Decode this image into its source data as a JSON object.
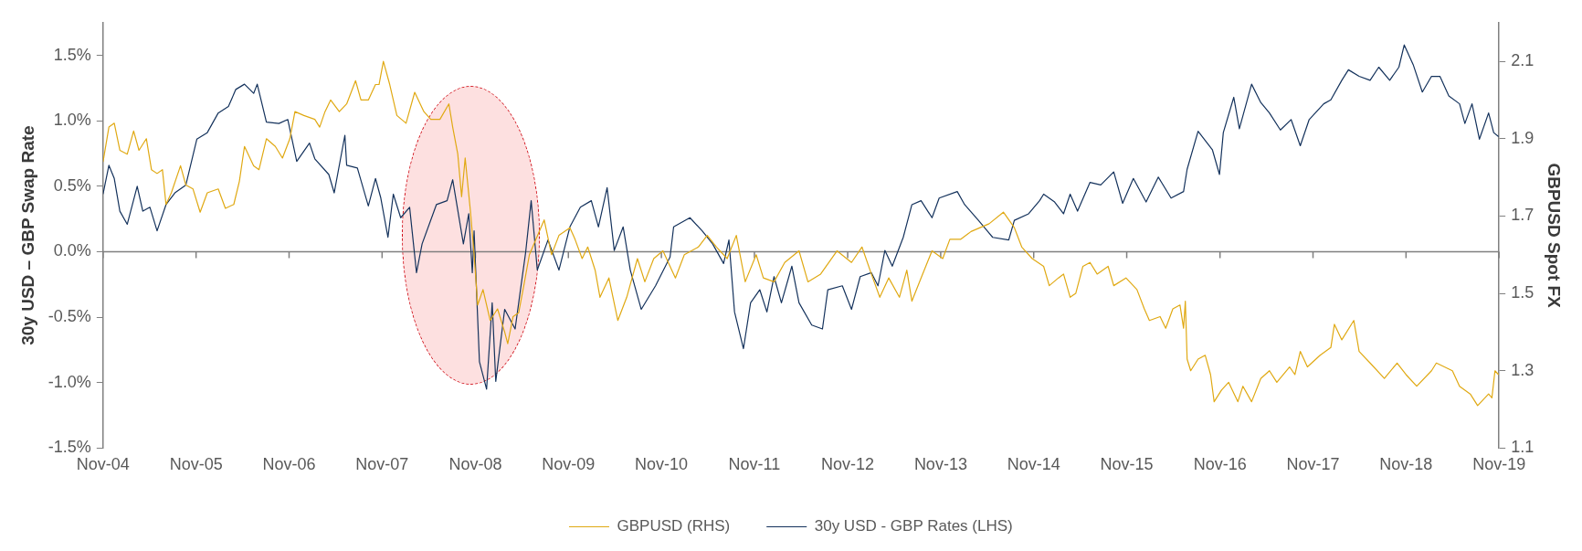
{
  "chart_data": {
    "type": "line",
    "ylabel": "30y USD – GBP Swap Rate",
    "y2label": "GBPUSD Spot FX",
    "xlim": [
      "2004-11-01",
      "2019-11-01"
    ],
    "xticks": [
      {
        "value": "2004-11-01",
        "label": "Nov-04"
      },
      {
        "value": "2005-11-01",
        "label": "Nov-05"
      },
      {
        "value": "2006-11-01",
        "label": "Nov-06"
      },
      {
        "value": "2007-11-01",
        "label": "Nov-07"
      },
      {
        "value": "2008-11-01",
        "label": "Nov-08"
      },
      {
        "value": "2009-11-01",
        "label": "Nov-09"
      },
      {
        "value": "2010-11-01",
        "label": "Nov-10"
      },
      {
        "value": "2011-11-01",
        "label": "Nov-11"
      },
      {
        "value": "2012-11-01",
        "label": "Nov-12"
      },
      {
        "value": "2013-11-01",
        "label": "Nov-13"
      },
      {
        "value": "2014-11-01",
        "label": "Nov-14"
      },
      {
        "value": "2015-11-01",
        "label": "Nov-15"
      },
      {
        "value": "2016-11-01",
        "label": "Nov-16"
      },
      {
        "value": "2017-11-01",
        "label": "Nov-17"
      },
      {
        "value": "2018-11-01",
        "label": "Nov-18"
      },
      {
        "value": "2019-11-01",
        "label": "Nov-19"
      }
    ],
    "ylim": [
      -1.5,
      1.75
    ],
    "yticks": [
      {
        "value": -1.5,
        "label": "-1.5%"
      },
      {
        "value": -1,
        "label": "-1.0%"
      },
      {
        "value": -0.5,
        "label": "-0.5%"
      },
      {
        "value": 0,
        "label": "0.0%"
      },
      {
        "value": 0.5,
        "label": "0.5%"
      },
      {
        "value": 1,
        "label": "1.0%"
      },
      {
        "value": 1.5,
        "label": "1.5%"
      }
    ],
    "y2lim": [
      1.1,
      2.2
    ],
    "y2ticks": [
      1.1,
      1.3,
      1.5,
      1.7,
      1.9,
      2.1
    ],
    "grid": false,
    "legend": "bottom",
    "ref_lines": [
      {
        "axis": "y",
        "value": 0,
        "color": "#808080"
      }
    ],
    "series": [
      {
        "name": "30y USD - GBP Rates (LHS)",
        "color": "#14325c",
        "x": [
          "2004-11-01",
          "2004-11-24",
          "2004-12-15",
          "2005-01-06",
          "2005-02-04",
          "2005-03-15",
          "2005-04-06",
          "2005-05-04",
          "2005-06-01",
          "2005-07-06",
          "2005-08-10",
          "2005-09-22",
          "2005-11-04",
          "2005-12-15",
          "2006-01-27",
          "2006-03-08",
          "2006-04-06",
          "2006-05-10",
          "2006-06-15",
          "2006-06-29",
          "2006-08-04",
          "2006-09-22",
          "2006-10-27",
          "2006-12-01",
          "2007-01-20",
          "2007-02-10",
          "2007-04-06",
          "2007-04-27",
          "2007-06-08",
          "2007-06-15",
          "2007-07-27",
          "2007-09-08",
          "2007-10-06",
          "2007-10-27",
          "2007-11-24",
          "2007-12-15",
          "2008-01-13",
          "2008-02-17",
          "2008-03-15",
          "2008-04-06",
          "2008-06-01",
          "2008-07-13",
          "2008-08-04",
          "2008-09-15",
          "2008-10-06",
          "2008-10-20",
          "2008-10-27",
          "2008-11-17",
          "2008-12-15",
          "2009-01-06",
          "2009-01-20",
          "2009-02-24",
          "2009-04-06",
          "2009-04-27",
          "2009-05-17",
          "2009-06-08",
          "2009-07-02",
          "2009-08-13",
          "2009-09-25",
          "2009-11-07",
          "2009-12-18",
          "2010-01-30",
          "2010-02-27",
          "2010-04-02",
          "2010-04-30",
          "2010-06-04",
          "2010-07-02",
          "2010-08-14",
          "2010-10-09",
          "2010-12-05",
          "2010-12-19",
          "2011-02-21",
          "2011-04-10",
          "2011-05-21",
          "2011-07-03",
          "2011-07-24",
          "2011-08-15",
          "2011-09-19",
          "2011-10-17",
          "2011-11-22",
          "2011-12-20",
          "2012-01-17",
          "2012-02-15",
          "2012-03-27",
          "2012-04-24",
          "2012-06-13",
          "2012-07-25",
          "2012-08-15",
          "2012-10-11",
          "2012-11-16",
          "2012-12-20",
          "2013-02-02",
          "2013-02-28",
          "2013-03-27",
          "2013-04-25",
          "2013-06-07",
          "2013-07-11",
          "2013-08-16",
          "2013-09-28",
          "2013-10-26",
          "2014-01-05",
          "2014-02-03",
          "2014-03-29",
          "2014-05-24",
          "2014-07-26",
          "2014-08-17",
          "2014-10-12",
          "2014-11-24",
          "2014-12-10",
          "2015-01-22",
          "2015-02-26",
          "2015-03-24",
          "2015-04-22",
          "2015-06-10",
          "2015-07-22",
          "2015-09-11",
          "2015-10-16",
          "2015-11-27",
          "2016-01-16",
          "2016-03-04",
          "2016-04-23",
          "2016-06-11",
          "2016-06-25",
          "2016-08-07",
          "2016-10-02",
          "2016-10-30",
          "2016-11-14",
          "2016-12-25",
          "2017-01-16",
          "2017-03-05",
          "2017-04-10",
          "2017-05-14",
          "2017-06-26",
          "2017-08-07",
          "2017-09-12",
          "2017-10-17",
          "2017-12-13",
          "2018-01-10",
          "2018-02-22",
          "2018-03-20",
          "2018-05-01",
          "2018-06-13",
          "2018-07-17",
          "2018-08-29",
          "2018-10-04",
          "2018-10-25",
          "2018-11-29",
          "2019-01-04",
          "2019-02-09",
          "2019-03-14",
          "2019-04-18",
          "2019-05-30",
          "2019-06-20",
          "2019-07-18",
          "2019-08-16",
          "2019-09-21",
          "2019-10-11",
          "2019-10-30"
        ],
        "values": [
          0.44,
          0.66,
          0.56,
          0.31,
          0.21,
          0.5,
          0.31,
          0.34,
          0.16,
          0.36,
          0.45,
          0.51,
          0.86,
          0.91,
          1.06,
          1.11,
          1.24,
          1.28,
          1.21,
          1.28,
          0.99,
          0.98,
          1.01,
          0.69,
          0.83,
          0.71,
          0.59,
          0.45,
          0.89,
          0.66,
          0.64,
          0.35,
          0.56,
          0.41,
          0.11,
          0.44,
          0.26,
          0.34,
          -0.16,
          0.06,
          0.36,
          0.39,
          0.55,
          0.06,
          0.29,
          -0.16,
          0.16,
          -0.84,
          -1.05,
          -0.39,
          -0.99,
          -0.44,
          -0.59,
          -0.29,
          -0.01,
          0.39,
          -0.14,
          0.09,
          -0.14,
          0.19,
          0.34,
          0.39,
          0.19,
          0.49,
          0.01,
          0.19,
          -0.14,
          -0.44,
          -0.26,
          -0.04,
          0.19,
          0.26,
          0.16,
          0.06,
          -0.09,
          0.09,
          -0.46,
          -0.74,
          -0.39,
          -0.29,
          -0.46,
          -0.19,
          -0.39,
          -0.11,
          -0.39,
          -0.56,
          -0.59,
          -0.29,
          -0.26,
          -0.44,
          -0.19,
          -0.16,
          -0.26,
          0.01,
          -0.11,
          0.11,
          0.36,
          0.39,
          0.26,
          0.41,
          0.46,
          0.36,
          0.24,
          0.11,
          0.09,
          0.24,
          0.29,
          0.39,
          0.44,
          0.38,
          0.29,
          0.44,
          0.31,
          0.53,
          0.51,
          0.61,
          0.37,
          0.56,
          0.38,
          0.57,
          0.41,
          0.46,
          0.63,
          0.92,
          0.78,
          0.59,
          0.91,
          1.18,
          0.94,
          1.28,
          1.14,
          1.06,
          0.93,
          1.01,
          0.81,
          1.01,
          1.13,
          1.16,
          1.31,
          1.39,
          1.34,
          1.31,
          1.41,
          1.31,
          1.41,
          1.58,
          1.43,
          1.22,
          1.34,
          1.34,
          1.19,
          1.13,
          0.98,
          1.13,
          0.86,
          1.06,
          0.91,
          0.88
        ]
      },
      {
        "name": "GBPUSD (RHS)",
        "color": "#e0a913",
        "axis": "y2",
        "x": [
          "2004-11-01",
          "2004-11-24",
          "2004-12-15",
          "2005-01-06",
          "2005-02-04",
          "2005-03-01",
          "2005-03-22",
          "2005-04-20",
          "2005-05-10",
          "2005-06-01",
          "2005-06-22",
          "2005-07-06",
          "2005-07-27",
          "2005-09-01",
          "2005-09-22",
          "2005-10-20",
          "2005-11-17",
          "2005-12-15",
          "2006-01-27",
          "2006-02-24",
          "2006-03-29",
          "2006-04-20",
          "2006-05-10",
          "2006-06-15",
          "2006-07-06",
          "2006-08-04",
          "2006-09-08",
          "2006-10-06",
          "2006-11-04",
          "2006-11-24",
          "2006-12-29",
          "2007-02-10",
          "2007-03-01",
          "2007-03-22",
          "2007-04-13",
          "2007-05-17",
          "2007-06-15",
          "2007-07-20",
          "2007-08-10",
          "2007-09-08",
          "2007-10-06",
          "2007-10-20",
          "2007-11-06",
          "2007-12-01",
          "2007-12-29",
          "2008-02-03",
          "2008-03-08",
          "2008-04-13",
          "2008-05-10",
          "2008-06-15",
          "2008-07-20",
          "2008-08-04",
          "2008-08-24",
          "2008-09-08",
          "2008-09-22",
          "2008-10-13",
          "2008-10-27",
          "2008-11-10",
          "2008-12-01",
          "2008-12-29",
          "2009-01-27",
          "2009-02-24",
          "2009-03-08",
          "2009-03-29",
          "2009-04-20",
          "2009-05-10",
          "2009-06-01",
          "2009-07-29",
          "2009-08-27",
          "2009-09-25",
          "2009-11-07",
          "2009-11-27",
          "2009-12-25",
          "2010-01-16",
          "2010-02-14",
          "2010-03-05",
          "2010-04-09",
          "2010-05-14",
          "2010-06-18",
          "2010-07-30",
          "2010-08-28",
          "2010-10-02",
          "2010-11-07",
          "2010-12-26",
          "2011-01-30",
          "2011-03-26",
          "2011-04-30",
          "2011-06-05",
          "2011-07-17",
          "2011-08-22",
          "2011-09-26",
          "2011-11-08",
          "2011-12-06",
          "2012-01-17",
          "2012-02-28",
          "2012-04-24",
          "2012-05-29",
          "2012-07-18",
          "2012-09-20",
          "2012-11-16",
          "2012-12-27",
          "2013-02-02",
          "2013-03-07",
          "2013-04-11",
          "2013-05-23",
          "2013-06-21",
          "2013-07-11",
          "2013-08-16",
          "2013-09-28",
          "2013-11-09",
          "2013-12-07",
          "2014-01-19",
          "2014-02-28",
          "2014-05-10",
          "2014-07-05",
          "2014-08-17",
          "2014-09-15",
          "2014-10-26",
          "2014-12-10",
          "2015-01-01",
          "2015-02-06",
          "2015-02-26",
          "2015-03-24",
          "2015-04-15",
          "2015-05-13",
          "2015-06-10",
          "2015-07-08",
          "2015-08-20",
          "2015-09-11",
          "2015-10-29",
          "2015-12-11",
          "2016-01-09",
          "2016-01-29",
          "2016-03-11",
          "2016-04-02",
          "2016-04-30",
          "2016-05-28",
          "2016-06-11",
          "2016-06-18",
          "2016-06-25",
          "2016-07-09",
          "2016-08-07",
          "2016-09-04",
          "2016-09-25",
          "2016-10-09",
          "2016-11-07",
          "2016-12-05",
          "2017-01-10",
          "2017-01-30",
          "2017-03-05",
          "2017-04-10",
          "2017-05-14",
          "2017-06-12",
          "2017-08-01",
          "2017-08-22",
          "2017-09-12",
          "2017-10-10",
          "2017-11-29",
          "2018-01-10",
          "2018-01-24",
          "2018-02-22",
          "2018-04-10",
          "2018-05-01",
          "2018-06-13",
          "2018-08-08",
          "2018-09-27",
          "2018-11-01",
          "2018-12-13",
          "2019-02-09",
          "2019-02-28",
          "2019-05-02",
          "2019-05-30",
          "2019-07-11",
          "2019-08-09",
          "2019-09-21",
          "2019-10-04",
          "2019-10-16",
          "2019-10-30"
        ],
        "values": [
          1.84,
          1.93,
          1.94,
          1.87,
          1.86,
          1.92,
          1.87,
          1.9,
          1.82,
          1.81,
          1.82,
          1.73,
          1.76,
          1.83,
          1.78,
          1.77,
          1.71,
          1.76,
          1.77,
          1.72,
          1.73,
          1.79,
          1.88,
          1.83,
          1.82,
          1.9,
          1.88,
          1.85,
          1.9,
          1.97,
          1.96,
          1.95,
          1.93,
          1.97,
          2.0,
          1.97,
          1.99,
          2.05,
          2.0,
          2.0,
          2.04,
          2.04,
          2.1,
          2.04,
          1.96,
          1.94,
          2.02,
          1.97,
          1.95,
          1.95,
          1.99,
          1.93,
          1.86,
          1.75,
          1.85,
          1.71,
          1.6,
          1.47,
          1.51,
          1.43,
          1.46,
          1.4,
          1.37,
          1.44,
          1.45,
          1.52,
          1.6,
          1.69,
          1.6,
          1.65,
          1.67,
          1.64,
          1.59,
          1.62,
          1.56,
          1.49,
          1.54,
          1.43,
          1.49,
          1.59,
          1.53,
          1.59,
          1.61,
          1.54,
          1.6,
          1.62,
          1.65,
          1.62,
          1.59,
          1.65,
          1.53,
          1.6,
          1.54,
          1.53,
          1.58,
          1.61,
          1.53,
          1.55,
          1.61,
          1.58,
          1.62,
          1.55,
          1.49,
          1.54,
          1.49,
          1.56,
          1.48,
          1.54,
          1.61,
          1.59,
          1.64,
          1.64,
          1.66,
          1.68,
          1.71,
          1.67,
          1.62,
          1.59,
          1.57,
          1.52,
          1.54,
          1.55,
          1.49,
          1.5,
          1.57,
          1.58,
          1.55,
          1.57,
          1.52,
          1.54,
          1.51,
          1.46,
          1.43,
          1.44,
          1.41,
          1.46,
          1.47,
          1.41,
          1.48,
          1.33,
          1.3,
          1.33,
          1.34,
          1.29,
          1.22,
          1.25,
          1.27,
          1.22,
          1.26,
          1.22,
          1.28,
          1.3,
          1.27,
          1.31,
          1.29,
          1.35,
          1.31,
          1.34,
          1.36,
          1.42,
          1.38,
          1.43,
          1.35,
          1.32,
          1.28,
          1.32,
          1.29,
          1.26,
          1.3,
          1.32,
          1.3,
          1.26,
          1.24,
          1.21,
          1.24,
          1.23,
          1.3,
          1.29
        ]
      }
    ]
  }
}
